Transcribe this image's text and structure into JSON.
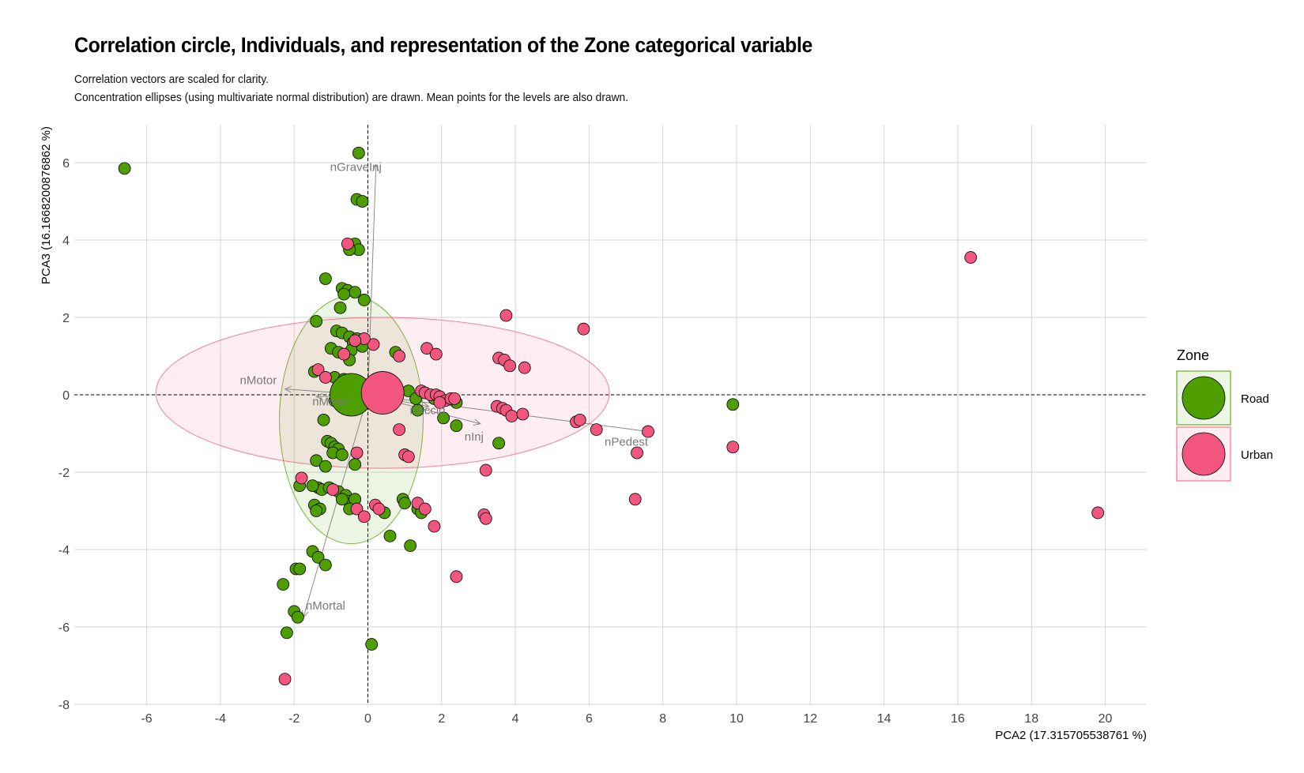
{
  "header": {
    "title": "Correlation circle, Individuals, and representation of the Zone categorical variable",
    "subtitle_1": "Correlation vectors are scaled for clarity.",
    "subtitle_2": "Concentration ellipses (using multivariate normal distribution) are drawn. Mean points for the levels are also drawn."
  },
  "chart_data": {
    "type": "scatter",
    "xlabel": "PCA2 (17.315705538761 %)",
    "ylabel": "PCA3 (16.1668200876862 %)",
    "xlim": [
      -8.1,
      21
    ],
    "ylim": [
      -8,
      6.9
    ],
    "x_ticks": [
      -6,
      -4,
      -2,
      0,
      2,
      4,
      6,
      8,
      10,
      12,
      14,
      16,
      18,
      20
    ],
    "y_ticks": [
      -8,
      -6,
      -4,
      -2,
      0,
      2,
      4,
      6
    ],
    "grid": true,
    "legend": {
      "title": "Zone",
      "placement": "right"
    },
    "colors": {
      "Road": "#4f9e00",
      "Urban": "#f2567f"
    },
    "series": [
      {
        "name": "Road",
        "color": "#4f9e00",
        "points": [
          [
            -6.6,
            5.85
          ],
          [
            -0.25,
            6.25
          ],
          [
            -0.3,
            5.05
          ],
          [
            -0.15,
            5.0
          ],
          [
            -0.45,
            3.85
          ],
          [
            -0.35,
            3.9
          ],
          [
            -0.25,
            3.75
          ],
          [
            -0.5,
            3.75
          ],
          [
            -1.15,
            3.0
          ],
          [
            -0.7,
            2.75
          ],
          [
            -0.55,
            2.7
          ],
          [
            -0.35,
            2.65
          ],
          [
            -0.65,
            2.6
          ],
          [
            -0.1,
            2.45
          ],
          [
            -0.75,
            2.25
          ],
          [
            -1.4,
            1.9
          ],
          [
            -0.85,
            1.65
          ],
          [
            -0.7,
            1.6
          ],
          [
            -0.5,
            1.5
          ],
          [
            -0.3,
            1.45
          ],
          [
            -0.4,
            1.35
          ],
          [
            -0.25,
            1.3
          ],
          [
            -0.15,
            1.25
          ],
          [
            -0.45,
            1.15
          ],
          [
            -1.0,
            1.2
          ],
          [
            -0.8,
            1.1
          ],
          [
            0.75,
            1.1
          ],
          [
            -0.5,
            0.9
          ],
          [
            -1.45,
            0.6
          ],
          [
            -0.9,
            0.45
          ],
          [
            -0.65,
            0.4
          ],
          [
            -0.45,
            0.35
          ],
          [
            -0.25,
            0.3
          ],
          [
            -0.15,
            0.2
          ],
          [
            1.1,
            0.1
          ],
          [
            1.3,
            -0.1
          ],
          [
            1.8,
            -0.1
          ],
          [
            2.4,
            -0.2
          ],
          [
            -0.55,
            -0.1
          ],
          [
            -0.9,
            -0.15
          ],
          [
            -0.3,
            -0.25
          ],
          [
            1.35,
            -0.4
          ],
          [
            2.05,
            -0.6
          ],
          [
            2.4,
            -0.8
          ],
          [
            -1.2,
            -0.65
          ],
          [
            -1.1,
            -1.2
          ],
          [
            -1.0,
            -1.25
          ],
          [
            -0.9,
            -1.35
          ],
          [
            -0.8,
            -1.4
          ],
          [
            -0.95,
            -1.5
          ],
          [
            -0.7,
            -1.55
          ],
          [
            3.55,
            -1.25
          ],
          [
            9.9,
            -0.25
          ],
          [
            -1.4,
            -1.7
          ],
          [
            -1.15,
            -1.85
          ],
          [
            -0.35,
            -1.8
          ],
          [
            -1.35,
            -2.4
          ],
          [
            -1.25,
            -2.45
          ],
          [
            -1.05,
            -2.4
          ],
          [
            -0.8,
            -2.5
          ],
          [
            -0.6,
            -2.6
          ],
          [
            -0.5,
            -2.75
          ],
          [
            -0.35,
            -2.7
          ],
          [
            -0.7,
            -2.7
          ],
          [
            -1.5,
            -2.35
          ],
          [
            -1.45,
            -2.85
          ],
          [
            -1.3,
            -2.95
          ],
          [
            -1.4,
            -3.0
          ],
          [
            -0.5,
            -2.95
          ],
          [
            0.95,
            -2.7
          ],
          [
            1.0,
            -2.8
          ],
          [
            1.35,
            -2.95
          ],
          [
            1.45,
            -3.05
          ],
          [
            0.45,
            -3.05
          ],
          [
            0.6,
            -3.65
          ],
          [
            1.15,
            -3.9
          ],
          [
            -1.5,
            -4.05
          ],
          [
            -1.35,
            -4.2
          ],
          [
            -1.15,
            -4.4
          ],
          [
            -1.95,
            -4.5
          ],
          [
            -1.85,
            -4.5
          ],
          [
            -2.3,
            -4.9
          ],
          [
            -2.0,
            -5.6
          ],
          [
            -1.9,
            -5.75
          ],
          [
            -2.2,
            -6.15
          ],
          [
            0.1,
            -6.45
          ],
          [
            -1.85,
            -2.35
          ]
        ]
      },
      {
        "name": "Urban",
        "color": "#f2567f",
        "points": [
          [
            16.35,
            3.55
          ],
          [
            19.8,
            -3.05
          ],
          [
            -0.55,
            3.9
          ],
          [
            3.75,
            2.05
          ],
          [
            5.85,
            1.7
          ],
          [
            4.25,
            0.7
          ],
          [
            3.55,
            0.95
          ],
          [
            3.7,
            0.9
          ],
          [
            3.85,
            0.75
          ],
          [
            1.6,
            1.2
          ],
          [
            1.85,
            1.05
          ],
          [
            0.85,
            1.0
          ],
          [
            0.15,
            1.3
          ],
          [
            -0.1,
            1.45
          ],
          [
            -0.35,
            1.4
          ],
          [
            -0.65,
            1.05
          ],
          [
            -1.35,
            0.65
          ],
          [
            -1.15,
            0.45
          ],
          [
            1.45,
            0.1
          ],
          [
            1.55,
            0.05
          ],
          [
            1.7,
            0.0
          ],
          [
            1.85,
            0.0
          ],
          [
            1.95,
            -0.05
          ],
          [
            2.1,
            -0.15
          ],
          [
            2.25,
            -0.1
          ],
          [
            2.35,
            -0.1
          ],
          [
            1.95,
            -0.2
          ],
          [
            3.5,
            -0.3
          ],
          [
            3.65,
            -0.35
          ],
          [
            3.75,
            -0.4
          ],
          [
            3.9,
            -0.55
          ],
          [
            4.2,
            -0.5
          ],
          [
            5.65,
            -0.7
          ],
          [
            5.75,
            -0.65
          ],
          [
            6.2,
            -0.9
          ],
          [
            7.6,
            -0.95
          ],
          [
            7.3,
            -1.5
          ],
          [
            9.9,
            -1.35
          ],
          [
            0.85,
            -0.9
          ],
          [
            1.0,
            -1.55
          ],
          [
            1.1,
            -1.6
          ],
          [
            3.2,
            -1.95
          ],
          [
            -0.3,
            -1.5
          ],
          [
            -1.8,
            -2.15
          ],
          [
            -0.95,
            -2.45
          ],
          [
            0.2,
            -2.85
          ],
          [
            0.3,
            -2.95
          ],
          [
            -0.3,
            -2.95
          ],
          [
            -0.1,
            -3.15
          ],
          [
            1.35,
            -2.8
          ],
          [
            1.55,
            -2.95
          ],
          [
            1.8,
            -3.4
          ],
          [
            3.15,
            -3.1
          ],
          [
            3.2,
            -3.2
          ],
          [
            7.25,
            -2.7
          ],
          [
            2.4,
            -4.7
          ],
          [
            -2.25,
            -7.35
          ]
        ]
      }
    ],
    "means": [
      {
        "name": "Road",
        "x": -0.45,
        "y": 0.0
      },
      {
        "name": "Urban",
        "x": 0.4,
        "y": 0.05
      }
    ],
    "ellipses": [
      {
        "name": "Road",
        "cx": -0.45,
        "cy": -0.65,
        "rx": 1.95,
        "ry": 3.2
      },
      {
        "name": "Urban",
        "cx": 0.4,
        "cy": 0.05,
        "rx": 6.15,
        "ry": 1.95
      }
    ],
    "vectors": [
      {
        "label": "nGraveInj",
        "x": 0.22,
        "y": 5.95
      },
      {
        "label": "nMotor",
        "x": -2.25,
        "y": 0.15
      },
      {
        "label": "nMinor",
        "x": -1.4,
        "y": -0.05
      },
      {
        "label": "nInj",
        "x": 3.05,
        "y": -0.75
      },
      {
        "label": "nPedest",
        "x": 7.6,
        "y": -0.95
      },
      {
        "label": "nMortal",
        "x": -1.75,
        "y": -5.75
      },
      {
        "label": "nAccid",
        "x": 1.65,
        "y": -0.3
      }
    ]
  }
}
